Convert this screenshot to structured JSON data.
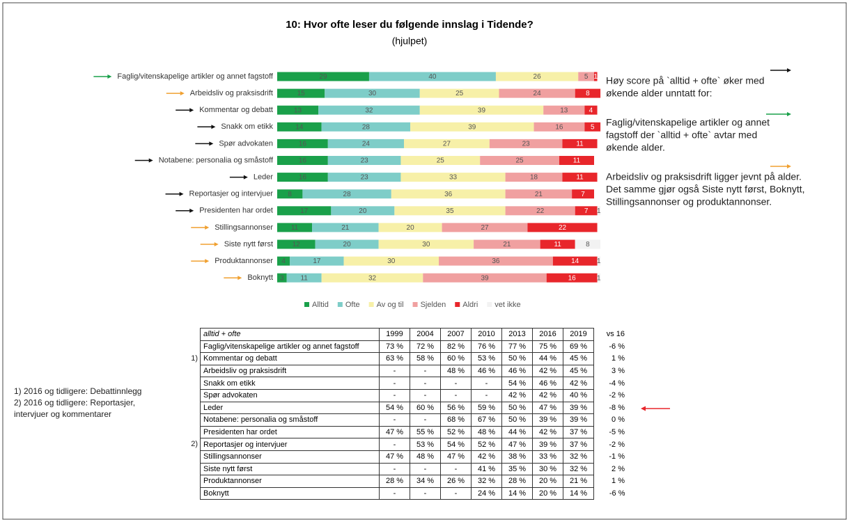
{
  "chart_data": {
    "type": "stacked-bar-horizontal",
    "title": "10: Hvor ofte leser du følgende innslag i Tidende?",
    "subtitle": "(hjulpet)",
    "categories": [
      "Faglig/vitenskapelige artikler og annet fagstoff",
      "Arbeidsliv og praksisdrift",
      "Kommentar og debatt",
      "Snakk om etikk",
      "Spør advokaten",
      "Notabene: personalia og småstoff",
      "Leder",
      "Reportasjer og intervjuer",
      "Presidenten har ordet",
      "Stillingsannonser",
      "Siste nytt først",
      "Produktannonser",
      "Boknytt"
    ],
    "arrow_colors": [
      "#1aa04a",
      "#f0a030",
      "#111111",
      "#111111",
      "#111111",
      "#111111",
      "#111111",
      "#111111",
      "#111111",
      "#f0a030",
      "#f0a030",
      "#f0a030",
      "#f0a030"
    ],
    "series": [
      {
        "name": "Alltid",
        "color": "#1aa04a",
        "values": [
          29,
          15,
          13,
          14,
          16,
          16,
          16,
          8,
          17,
          11,
          12,
          4,
          3
        ]
      },
      {
        "name": "Ofte",
        "color": "#7ecdc8",
        "values": [
          40,
          30,
          32,
          28,
          24,
          23,
          23,
          28,
          20,
          21,
          20,
          17,
          11
        ]
      },
      {
        "name": "Av og til",
        "color": "#f7f0a8",
        "values": [
          26,
          25,
          39,
          39,
          27,
          25,
          33,
          36,
          35,
          20,
          30,
          30,
          32
        ]
      },
      {
        "name": "Sjelden",
        "color": "#f0a0a0",
        "values": [
          5,
          24,
          13,
          16,
          23,
          25,
          18,
          21,
          22,
          27,
          21,
          36,
          39
        ]
      },
      {
        "name": "Aldri",
        "color": "#e8262b",
        "values": [
          1,
          8,
          4,
          5,
          11,
          11,
          11,
          7,
          7,
          22,
          11,
          14,
          16
        ]
      },
      {
        "name": "vet ikke",
        "color": "#f2f2f2",
        "values": [
          null,
          null,
          null,
          null,
          null,
          null,
          null,
          null,
          1,
          null,
          8,
          1,
          1
        ]
      }
    ],
    "xlim": [
      0,
      100
    ],
    "legend": "bottom"
  },
  "commentary": [
    [
      "Høy score på `alltid + ofte` øker med",
      "økende alder unntatt for:"
    ],
    [
      "Faglig/vitenskapelige artikler og annet",
      "fagstoff der `alltid + ofte` avtar med",
      "økende alder."
    ],
    [
      "Arbeidsliv og praksisdrift ligger jevnt på alder.",
      "Det samme gjør også Siste nytt først, Boknytt,",
      "Stillingsannonser og produktannonser."
    ]
  ],
  "notes": [
    "1) 2016 og tidligere: Debattinnlegg",
    "2) 2016 og tidligere: Reportasjer,",
    "intervjuer og kommentarer"
  ],
  "table": {
    "header": [
      "alltid + ofte",
      "1999",
      "2004",
      "2007",
      "2010",
      "2013",
      "2016",
      "2019",
      "vs 16"
    ],
    "row_marks": [
      null,
      "1)",
      null,
      null,
      null,
      null,
      null,
      null,
      "2)",
      null,
      null,
      null,
      null
    ],
    "rows": [
      [
        "Faglig/vitenskapelige artikler og annet fagstoff",
        "73 %",
        "72 %",
        "82 %",
        "76 %",
        "77 %",
        "75 %",
        "69 %",
        "-6 %"
      ],
      [
        "Kommentar og debatt",
        "63 %",
        "58 %",
        "60 %",
        "53 %",
        "50 %",
        "44 %",
        "45 %",
        "1 %"
      ],
      [
        "Arbeidsliv og praksisdrift",
        "-",
        "-",
        "48 %",
        "46 %",
        "46 %",
        "42 %",
        "45 %",
        "3 %"
      ],
      [
        "Snakk om etikk",
        "-",
        "-",
        "-",
        "-",
        "54 %",
        "46 %",
        "42 %",
        "-4 %"
      ],
      [
        "Spør advokaten",
        "-",
        "-",
        "-",
        "-",
        "42 %",
        "42 %",
        "40 %",
        "-2 %"
      ],
      [
        "Leder",
        "54 %",
        "60 %",
        "56 %",
        "59 %",
        "50 %",
        "47 %",
        "39 %",
        "-8 %"
      ],
      [
        "Notabene: personalia og småstoff",
        "-",
        "-",
        "68 %",
        "67 %",
        "50 %",
        "39 %",
        "39 %",
        "0 %"
      ],
      [
        "Presidenten har ordet",
        "47 %",
        "55 %",
        "52 %",
        "48 %",
        "44 %",
        "42 %",
        "37 %",
        "-5 %"
      ],
      [
        "Reportasjer og intervjuer",
        "-",
        "53 %",
        "54 %",
        "52 %",
        "47 %",
        "39 %",
        "37 %",
        "-2 %"
      ],
      [
        "Stillingsannonser",
        "47 %",
        "48 %",
        "47 %",
        "42 %",
        "38 %",
        "33 %",
        "32 %",
        "-1 %"
      ],
      [
        "Siste nytt først",
        "-",
        "-",
        "-",
        "41 %",
        "35 %",
        "30 %",
        "32 %",
        "2 %"
      ],
      [
        "Produktannonser",
        "28 %",
        "34 %",
        "26 %",
        "32 %",
        "28 %",
        "20 %",
        "21 %",
        "1 %"
      ],
      [
        "Boknytt",
        "-",
        "-",
        "-",
        "24 %",
        "14 %",
        "20 %",
        "14 %",
        "-6 %"
      ]
    ]
  }
}
